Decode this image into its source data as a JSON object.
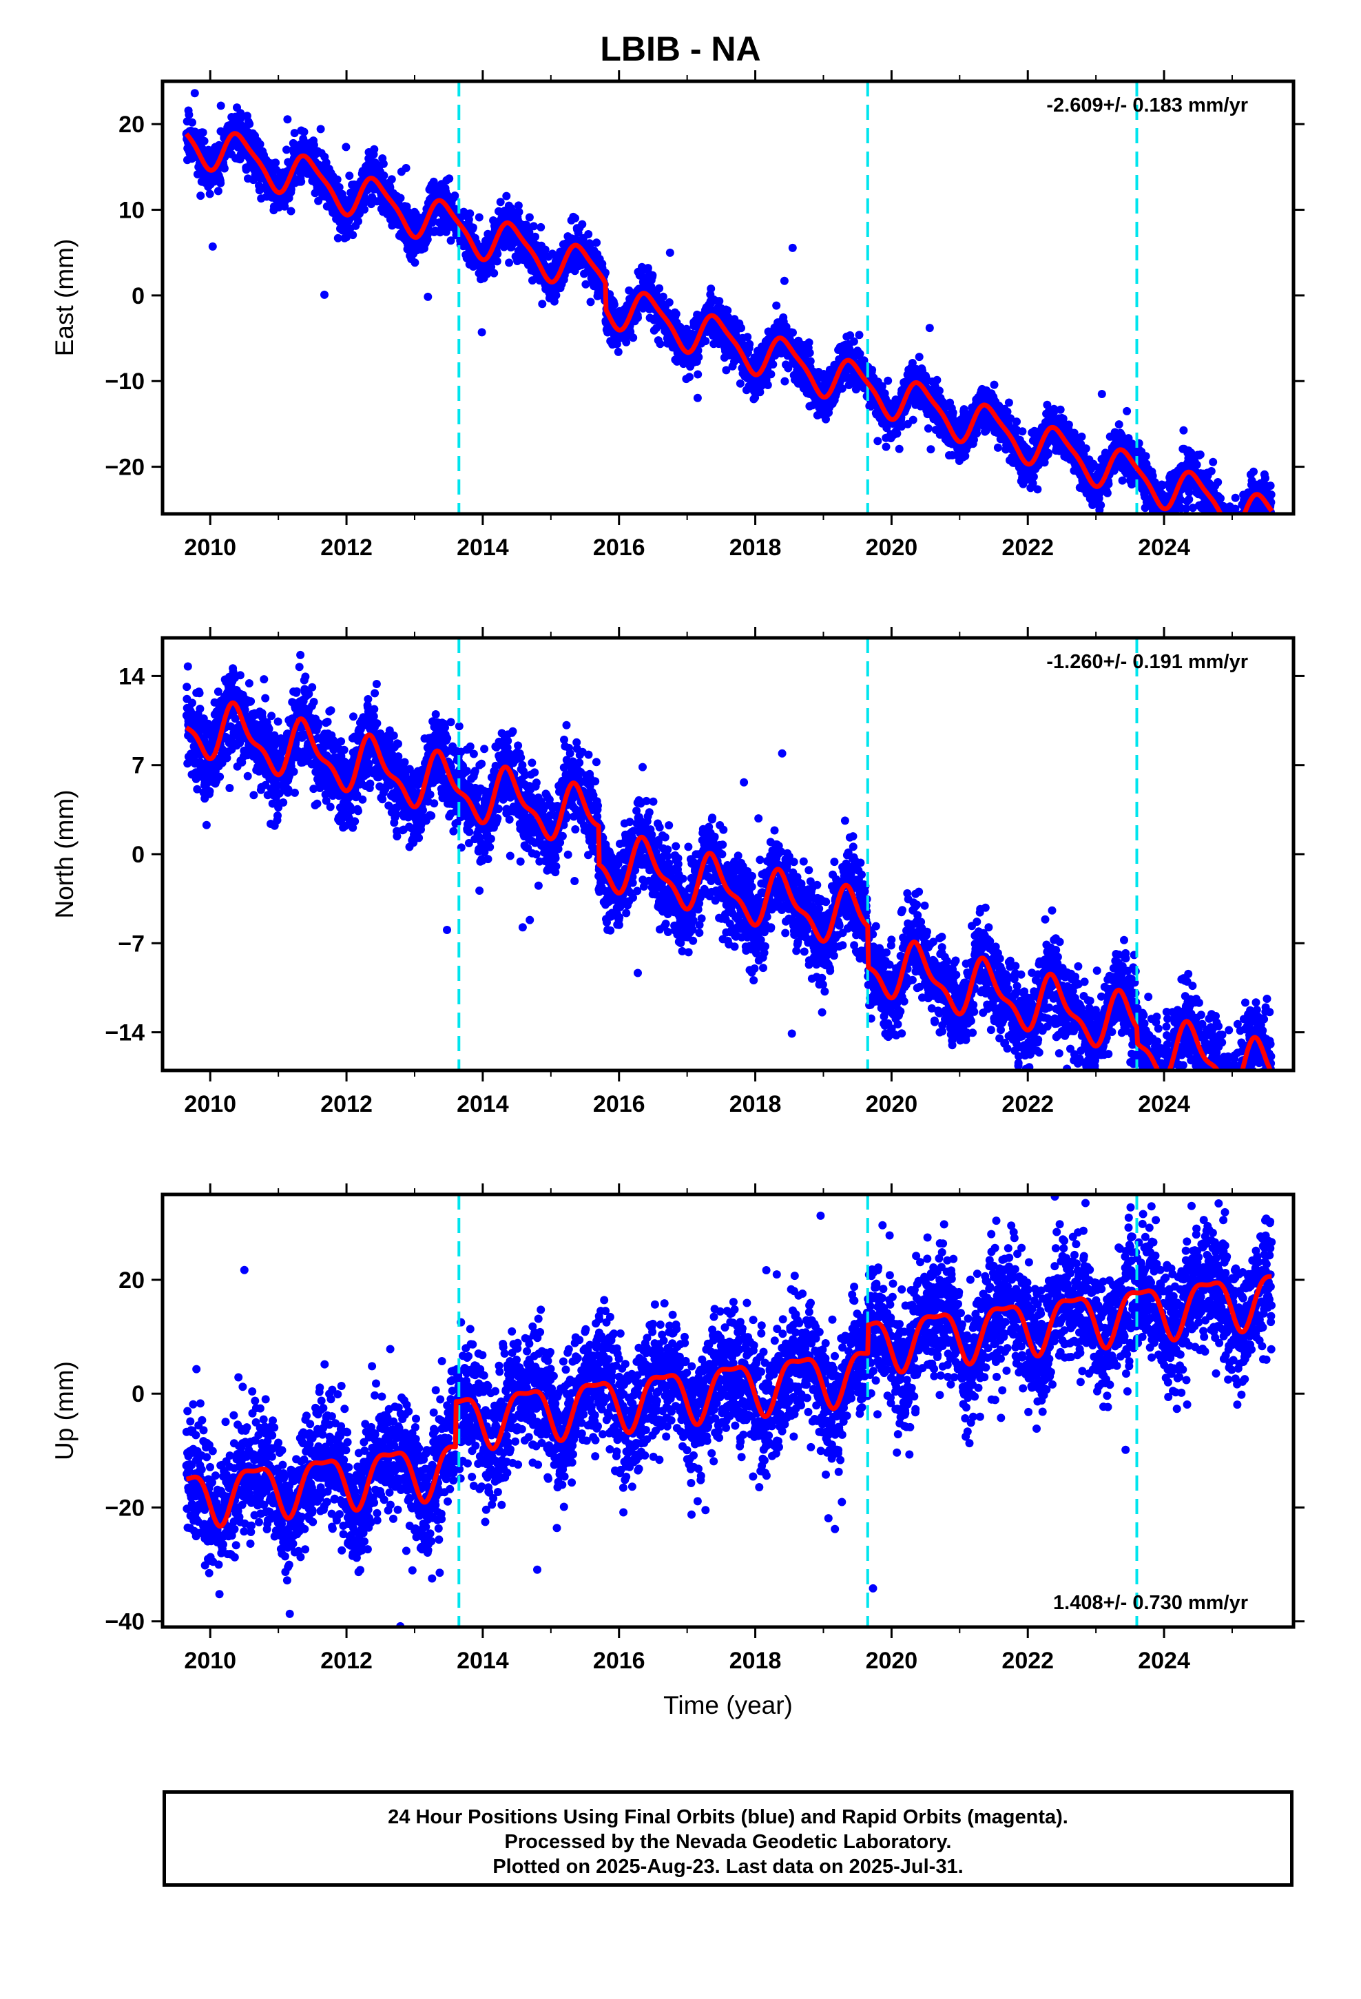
{
  "title": "LBIB - NA",
  "xlabel": "Time (year)",
  "footer": {
    "line1": "24 Hour Positions Using Final Orbits (blue) and Rapid Orbits (magenta).",
    "line2": "Processed by the Nevada Geodetic Laboratory.",
    "line3": "Plotted on 2025-Aug-23. Last data on 2025-Jul-31."
  },
  "colors": {
    "points": "#0000ff",
    "fit": "#ff0000",
    "event_lines": "#00e5ee"
  },
  "chart_data": [
    {
      "type": "scatter",
      "name": "east",
      "ylabel": "East (mm)",
      "rate": "-2.609+/- 0.183 mm/yr",
      "rate_position": "top-right",
      "xlim": [
        2009.3,
        2025.9
      ],
      "ylim": [
        -25.5,
        25
      ],
      "yticks": [
        -20,
        -10,
        0,
        10,
        20
      ],
      "xticks": [
        2010,
        2012,
        2014,
        2016,
        2018,
        2020,
        2022,
        2024
      ],
      "event_lines": [
        2013.65,
        2019.65,
        2023.6
      ],
      "start": 2009.65,
      "end": 2025.58,
      "model": {
        "t0": 2009.65,
        "offset": 18.3,
        "rate": -2.609,
        "annual_amp": 2.4,
        "annual_phase": 2010.45,
        "semi_amp": 0.6,
        "semi_phase": 2010.3,
        "steps": [
          [
            2015.8,
            -3.0
          ],
          [
            2020.9,
            0.0
          ]
        ],
        "scatter": 1.3
      },
      "fit_series": "red smoothed model"
    },
    {
      "type": "scatter",
      "name": "north",
      "ylabel": "North (mm)",
      "rate": "-1.260+/- 0.191 mm/yr",
      "rate_position": "top-right",
      "xlim": [
        2009.3,
        2025.9
      ],
      "ylim": [
        -17,
        17
      ],
      "yticks": [
        -14,
        -7,
        0,
        7,
        14
      ],
      "xticks": [
        2010,
        2012,
        2014,
        2016,
        2018,
        2020,
        2022,
        2024
      ],
      "event_lines": [
        2013.65,
        2019.65,
        2023.6
      ],
      "start": 2009.65,
      "end": 2025.58,
      "model": {
        "t0": 2009.65,
        "offset": 10.2,
        "rate": -1.26,
        "annual_amp": 2.0,
        "annual_phase": 2010.4,
        "semi_amp": 0.8,
        "semi_phase": 2010.3,
        "steps": [
          [
            2015.7,
            -3.0
          ],
          [
            2019.65,
            -3.2
          ],
          [
            2023.6,
            -1.2
          ]
        ],
        "scatter": 1.7
      },
      "fit_series": "red smoothed model"
    },
    {
      "type": "scatter",
      "name": "up",
      "ylabel": "Up (mm)",
      "rate": "1.408+/- 0.730 mm/yr",
      "rate_position": "bottom-right",
      "xlim": [
        2009.3,
        2025.9
      ],
      "ylim": [
        -41,
        35
      ],
      "yticks": [
        -40,
        -20,
        0,
        20
      ],
      "xticks": [
        2010,
        2012,
        2014,
        2016,
        2018,
        2020,
        2022,
        2024
      ],
      "event_lines": [
        2013.65,
        2019.65,
        2023.6
      ],
      "start": 2009.65,
      "end": 2025.58,
      "model": {
        "t0": 2009.65,
        "offset": -18.0,
        "rate": 1.408,
        "annual_amp": 4.5,
        "annual_phase": 2010.65,
        "semi_amp": 1.5,
        "semi_phase": 2010.4,
        "steps": [
          [
            2013.6,
            8.0
          ],
          [
            2019.65,
            5.0
          ]
        ],
        "scatter": 5.5
      },
      "fit_series": "red smoothed model"
    }
  ]
}
